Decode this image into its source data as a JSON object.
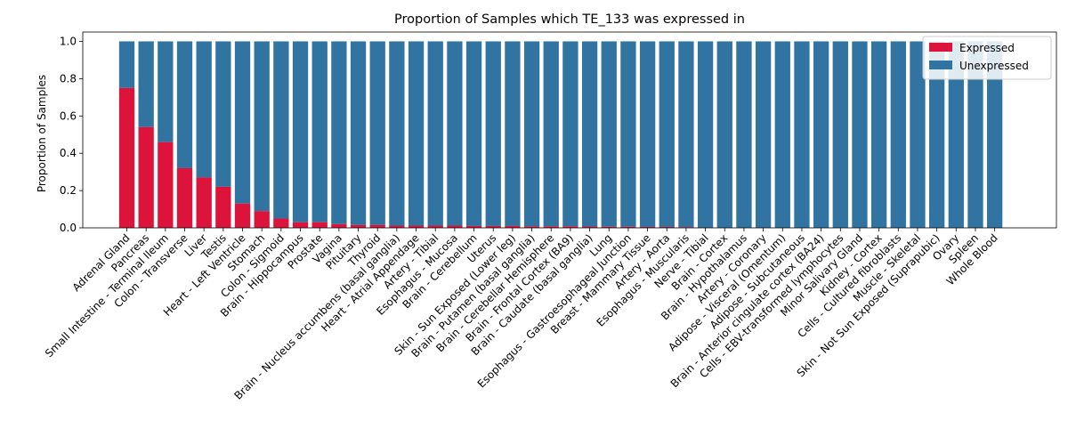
{
  "chart_data": {
    "type": "bar",
    "stacked": true,
    "title": "Proportion of Samples which TE_133 was expressed in",
    "xlabel": "",
    "ylabel": "Proportion of Samples",
    "ylim": [
      0,
      1.05
    ],
    "yticks": [
      "0.0",
      "0.2",
      "0.4",
      "0.6",
      "0.8",
      "1.0"
    ],
    "ytick_values": [
      0,
      0.2,
      0.4,
      0.6,
      0.8,
      1.0
    ],
    "legend_position": "top-right",
    "grid": false,
    "categories": [
      "Adrenal Gland",
      "Pancreas",
      "Small Intestine - Terminal Ileum",
      "Colon - Transverse",
      "Liver",
      "Testis",
      "Heart - Left Ventricle",
      "Stomach",
      "Colon - Sigmoid",
      "Brain - Hippocampus",
      "Prostate",
      "Vagina",
      "Pituitary",
      "Thyroid",
      "Brain - Nucleus accumbens (basal ganglia)",
      "Heart - Atrial Appendage",
      "Artery - Tibial",
      "Esophagus - Mucosa",
      "Brain - Cerebellum",
      "Uterus",
      "Skin - Sun Exposed (Lower leg)",
      "Brain - Putamen (basal ganglia)",
      "Brain - Cerebellar Hemisphere",
      "Brain - Frontal Cortex (BA9)",
      "Brain - Caudate (basal ganglia)",
      "Lung",
      "Esophagus - Gastroesophageal Junction",
      "Breast - Mammary Tissue",
      "Artery - Aorta",
      "Esophagus - Muscularis",
      "Nerve - Tibial",
      "Brain - Cortex",
      "Brain - Hypothalamus",
      "Artery - Coronary",
      "Adipose - Visceral (Omentum)",
      "Adipose - Subcutaneous",
      "Brain - Anterior cingulate cortex (BA24)",
      "Cells - EBV-transformed lymphocytes",
      "Minor Salivary Gland",
      "Kidney - Cortex",
      "Cells - Cultured fibroblasts",
      "Muscle - Skeletal",
      "Skin - Not Sun Exposed (Suprapubic)",
      "Ovary",
      "Spleen",
      "Whole Blood"
    ],
    "series": [
      {
        "name": "Expressed",
        "color": "#dc143c",
        "values": [
          0.75,
          0.54,
          0.46,
          0.32,
          0.27,
          0.22,
          0.13,
          0.09,
          0.05,
          0.03,
          0.03,
          0.02,
          0.015,
          0.015,
          0.012,
          0.012,
          0.012,
          0.012,
          0.01,
          0.01,
          0.01,
          0.008,
          0.008,
          0.008,
          0.007,
          0.006,
          0.006,
          0.005,
          0.005,
          0.004,
          0,
          0,
          0,
          0,
          0,
          0,
          0,
          0,
          0,
          0,
          0,
          0,
          0,
          0,
          0,
          0
        ]
      },
      {
        "name": "Unexpressed",
        "color": "#3274a1",
        "values": [
          0.25,
          0.46,
          0.54,
          0.68,
          0.73,
          0.78,
          0.87,
          0.91,
          0.95,
          0.97,
          0.97,
          0.98,
          0.985,
          0.985,
          0.988,
          0.988,
          0.988,
          0.988,
          0.99,
          0.99,
          0.99,
          0.992,
          0.992,
          0.992,
          0.993,
          0.994,
          0.994,
          0.995,
          0.995,
          0.996,
          1,
          1,
          1,
          1,
          1,
          1,
          1,
          1,
          1,
          1,
          1,
          1,
          1,
          1,
          1,
          1
        ]
      }
    ]
  }
}
